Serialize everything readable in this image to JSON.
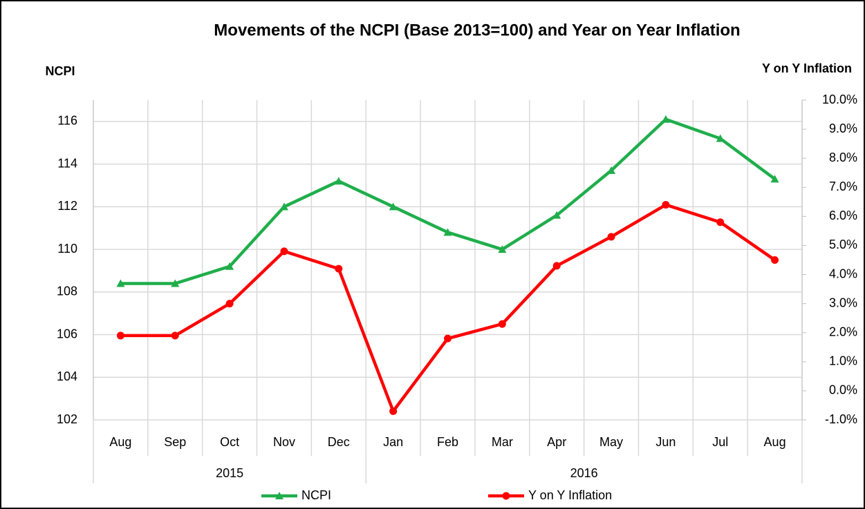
{
  "chart_data": {
    "type": "line",
    "title": "Movements of the NCPI (Base 2013=100) and Year on Year Inflation",
    "y_label": "NCPI",
    "y2_label": "Y on Y Inflation",
    "categories": [
      "Aug",
      "Sep",
      "Oct",
      "Nov",
      "Dec",
      "Jan",
      "Feb",
      "Mar",
      "Apr",
      "May",
      "Jun",
      "Jul",
      "Aug"
    ],
    "category_groups": [
      {
        "name": "2015",
        "count": 5
      },
      {
        "name": "2016",
        "count": 8
      }
    ],
    "series": [
      {
        "name": "NCPI",
        "color": "#1fae4b",
        "marker": "triangle",
        "values": [
          108.4,
          108.4,
          109.2,
          112.0,
          113.2,
          112.0,
          110.8,
          110.0,
          111.6,
          113.7,
          116.1,
          115.2,
          113.3
        ]
      },
      {
        "name": "Y on Y Inflation",
        "color": "#ff0000",
        "marker": "circle",
        "axis": "y2",
        "values": [
          1.9,
          1.9,
          3.0,
          4.8,
          4.2,
          -0.7,
          1.8,
          2.3,
          4.3,
          5.3,
          6.4,
          5.8,
          4.5
        ]
      }
    ],
    "ylim": [
      102,
      117
    ],
    "yticks": [
      102,
      104,
      106,
      108,
      110,
      112,
      114,
      116
    ],
    "y2lim": [
      -1,
      10
    ],
    "y2ticks": [
      {
        "value": -1,
        "label": "-1.0%"
      },
      {
        "value": 0,
        "label": "0.0%"
      },
      {
        "value": 1,
        "label": "1.0%"
      },
      {
        "value": 2,
        "label": "2.0%"
      },
      {
        "value": 3,
        "label": "3.0%"
      },
      {
        "value": 4,
        "label": "4.0%"
      },
      {
        "value": 5,
        "label": "5.0%"
      },
      {
        "value": 6,
        "label": "6.0%"
      },
      {
        "value": 7,
        "label": "7.0%"
      },
      {
        "value": 8,
        "label": "8.0%"
      },
      {
        "value": 9,
        "label": "9.0%"
      },
      {
        "value": 10,
        "label": "10.0%"
      }
    ],
    "grid": true,
    "legend": "bottom"
  }
}
